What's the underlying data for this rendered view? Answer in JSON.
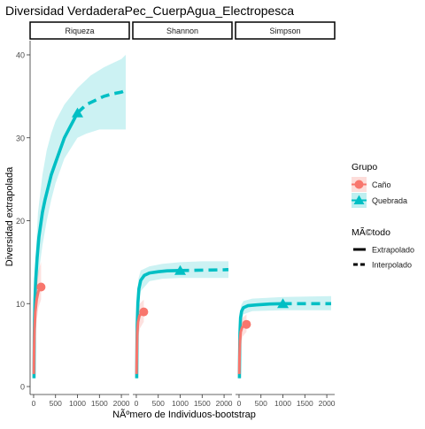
{
  "chart_data": {
    "type": "line",
    "title": "Diversidad VerdaderaPec_CuerpAgua_Electropesca",
    "xlabel": "NÃºmero de Individuos-bootstrap",
    "ylabel": "Diversidad extrapolada",
    "ylim": [
      0,
      42
    ],
    "xlim": [
      0,
      2100
    ],
    "y_ticks": [
      0,
      10,
      20,
      30,
      40
    ],
    "x_ticks": [
      0,
      500,
      1000,
      1500,
      2000
    ],
    "facets": [
      "Riqueza",
      "Shannon",
      "Simpson"
    ],
    "grid": false,
    "legend_position": "right",
    "legends": [
      {
        "title": "Grupo",
        "entries": [
          {
            "label": "Caño",
            "color": "#F8766D",
            "shape": "circle"
          },
          {
            "label": "Quebrada",
            "color": "#00BFC4",
            "shape": "triangle"
          }
        ]
      },
      {
        "title": "MÃ©todo",
        "entries": [
          {
            "label": "Extrapolado",
            "linetype": "solid"
          },
          {
            "label": "Interpolado",
            "linetype": "dashed"
          }
        ]
      }
    ],
    "colors": {
      "cano": "#F8766D",
      "quebrada": "#00BFC4"
    },
    "panels": [
      {
        "facet": "Riqueza",
        "series": [
          {
            "name": "Quebrada",
            "observed": {
              "x": 1000,
              "y": 33
            },
            "solid": [
              [
                8,
                1
              ],
              [
                10,
                3
              ],
              [
                15,
                6
              ],
              [
                20,
                8
              ],
              [
                30,
                10.5
              ],
              [
                50,
                13
              ],
              [
                80,
                15.5
              ],
              [
                120,
                18
              ],
              [
                160,
                19.5
              ],
              [
                200,
                21
              ],
              [
                260,
                22.5
              ],
              [
                330,
                24
              ],
              [
                400,
                25.5
              ],
              [
                500,
                27
              ],
              [
                600,
                28.5
              ],
              [
                700,
                30
              ],
              [
                800,
                31
              ],
              [
                900,
                32
              ],
              [
                1000,
                33
              ]
            ],
            "dashed": [
              [
                1000,
                33
              ],
              [
                1200,
                34
              ],
              [
                1400,
                34.5
              ],
              [
                1600,
                35
              ],
              [
                1800,
                35.3
              ],
              [
                2000,
                35.5
              ],
              [
                2100,
                35.7
              ]
            ],
            "band_upper": [
              [
                8,
                4
              ],
              [
                20,
                10
              ],
              [
                50,
                16
              ],
              [
                100,
                21
              ],
              [
                200,
                25.5
              ],
              [
                300,
                28.5
              ],
              [
                400,
                30.5
              ],
              [
                500,
                32
              ],
              [
                700,
                34
              ],
              [
                1000,
                36
              ],
              [
                1300,
                37.5
              ],
              [
                1600,
                38.5
              ],
              [
                2000,
                39.5
              ],
              [
                2100,
                40
              ]
            ],
            "band_lower": [
              [
                8,
                0.5
              ],
              [
                20,
                6
              ],
              [
                50,
                10
              ],
              [
                100,
                13
              ],
              [
                200,
                17
              ],
              [
                300,
                20
              ],
              [
                400,
                22.5
              ],
              [
                500,
                24.5
              ],
              [
                700,
                27.5
              ],
              [
                1000,
                30
              ],
              [
                1200,
                30.5
              ],
              [
                1500,
                31
              ],
              [
                2000,
                31
              ],
              [
                2100,
                31
              ]
            ]
          },
          {
            "name": "Caño",
            "observed": {
              "x": 170,
              "y": 12
            },
            "solid": [
              [
                5,
                1.5
              ],
              [
                10,
                4.5
              ],
              [
                20,
                7
              ],
              [
                40,
                9
              ],
              [
                70,
                10.5
              ],
              [
                110,
                11.5
              ],
              [
                170,
                12
              ]
            ],
            "band_upper": [
              [
                5,
                3
              ],
              [
                20,
                10
              ],
              [
                60,
                12.5
              ],
              [
                110,
                14
              ],
              [
                170,
                15
              ]
            ],
            "band_lower": [
              [
                5,
                0.5
              ],
              [
                20,
                4
              ],
              [
                60,
                7.5
              ],
              [
                110,
                9.5
              ],
              [
                170,
                10.5
              ]
            ]
          }
        ]
      },
      {
        "facet": "Shannon",
        "series": [
          {
            "name": "Quebrada",
            "observed": {
              "x": 1000,
              "y": 14
            },
            "solid": [
              [
                8,
                1
              ],
              [
                12,
                4
              ],
              [
                20,
                7.5
              ],
              [
                35,
                10
              ],
              [
                60,
                11.8
              ],
              [
                100,
                12.8
              ],
              [
                180,
                13.4
              ],
              [
                300,
                13.7
              ],
              [
                500,
                13.85
              ],
              [
                700,
                13.95
              ],
              [
                1000,
                14
              ]
            ],
            "dashed": [
              [
                1000,
                14
              ],
              [
                1300,
                14.02
              ],
              [
                1600,
                14.05
              ],
              [
                2000,
                14.08
              ],
              [
                2100,
                14.1
              ]
            ],
            "band_upper": [
              [
                8,
                3
              ],
              [
                20,
                10
              ],
              [
                50,
                13
              ],
              [
                100,
                14
              ],
              [
                300,
                14.5
              ],
              [
                600,
                14.8
              ],
              [
                1000,
                15
              ],
              [
                1500,
                15.1
              ],
              [
                2100,
                15.1
              ]
            ],
            "band_lower": [
              [
                8,
                0.5
              ],
              [
                20,
                6
              ],
              [
                50,
                10
              ],
              [
                100,
                11.5
              ],
              [
                300,
                12.7
              ],
              [
                600,
                13
              ],
              [
                1000,
                13.1
              ],
              [
                1500,
                13.1
              ],
              [
                2100,
                13.1
              ]
            ]
          },
          {
            "name": "Caño",
            "observed": {
              "x": 170,
              "y": 9
            },
            "solid": [
              [
                5,
                1.5
              ],
              [
                10,
                4
              ],
              [
                20,
                6.5
              ],
              [
                40,
                7.8
              ],
              [
                70,
                8.5
              ],
              [
                110,
                8.8
              ],
              [
                170,
                9
              ]
            ],
            "band_upper": [
              [
                5,
                3
              ],
              [
                30,
                9
              ],
              [
                80,
                10
              ],
              [
                170,
                10.5
              ]
            ],
            "band_lower": [
              [
                5,
                0.5
              ],
              [
                30,
                5.5
              ],
              [
                80,
                7
              ],
              [
                170,
                7.8
              ]
            ]
          }
        ]
      },
      {
        "facet": "Simpson",
        "series": [
          {
            "name": "Quebrada",
            "observed": {
              "x": 1000,
              "y": 10
            },
            "solid": [
              [
                8,
                1
              ],
              [
                12,
                3.5
              ],
              [
                20,
                6.5
              ],
              [
                35,
                8.3
              ],
              [
                60,
                9.1
              ],
              [
                100,
                9.5
              ],
              [
                200,
                9.75
              ],
              [
                400,
                9.85
              ],
              [
                700,
                9.95
              ],
              [
                1000,
                10
              ]
            ],
            "dashed": [
              [
                1000,
                10
              ],
              [
                1400,
                10
              ],
              [
                1800,
                10
              ],
              [
                2100,
                10
              ]
            ],
            "band_upper": [
              [
                8,
                3
              ],
              [
                20,
                8.5
              ],
              [
                50,
                9.8
              ],
              [
                100,
                10.3
              ],
              [
                300,
                10.6
              ],
              [
                1000,
                10.8
              ],
              [
                2100,
                10.9
              ]
            ],
            "band_lower": [
              [
                8,
                0.5
              ],
              [
                20,
                5
              ],
              [
                50,
                7.8
              ],
              [
                100,
                8.7
              ],
              [
                300,
                9.1
              ],
              [
                1000,
                9.2
              ],
              [
                2100,
                9.2
              ]
            ]
          },
          {
            "name": "Caño",
            "observed": {
              "x": 170,
              "y": 7.5
            },
            "solid": [
              [
                5,
                1.5
              ],
              [
                10,
                3.5
              ],
              [
                20,
                5.5
              ],
              [
                40,
                6.6
              ],
              [
                70,
                7.1
              ],
              [
                110,
                7.35
              ],
              [
                170,
                7.5
              ]
            ],
            "band_upper": [
              [
                5,
                3
              ],
              [
                30,
                7.5
              ],
              [
                80,
                8.3
              ],
              [
                170,
                8.7
              ]
            ],
            "band_lower": [
              [
                5,
                0.5
              ],
              [
                30,
                4.5
              ],
              [
                80,
                6
              ],
              [
                170,
                6.6
              ]
            ]
          }
        ]
      }
    ]
  }
}
